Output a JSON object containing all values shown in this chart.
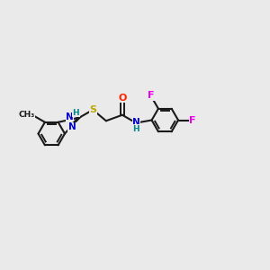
{
  "background_color": "#eaeaea",
  "bond_color": "#1a1a1a",
  "atom_colors": {
    "N": "#0000cc",
    "O": "#ff2200",
    "S": "#bbaa00",
    "F": "#ee00ee",
    "H": "#008888",
    "C": "#1a1a1a"
  },
  "figsize": [
    3.0,
    3.0
  ],
  "dpi": 100,
  "xlim": [
    0,
    10
  ],
  "ylim": [
    0,
    10
  ]
}
